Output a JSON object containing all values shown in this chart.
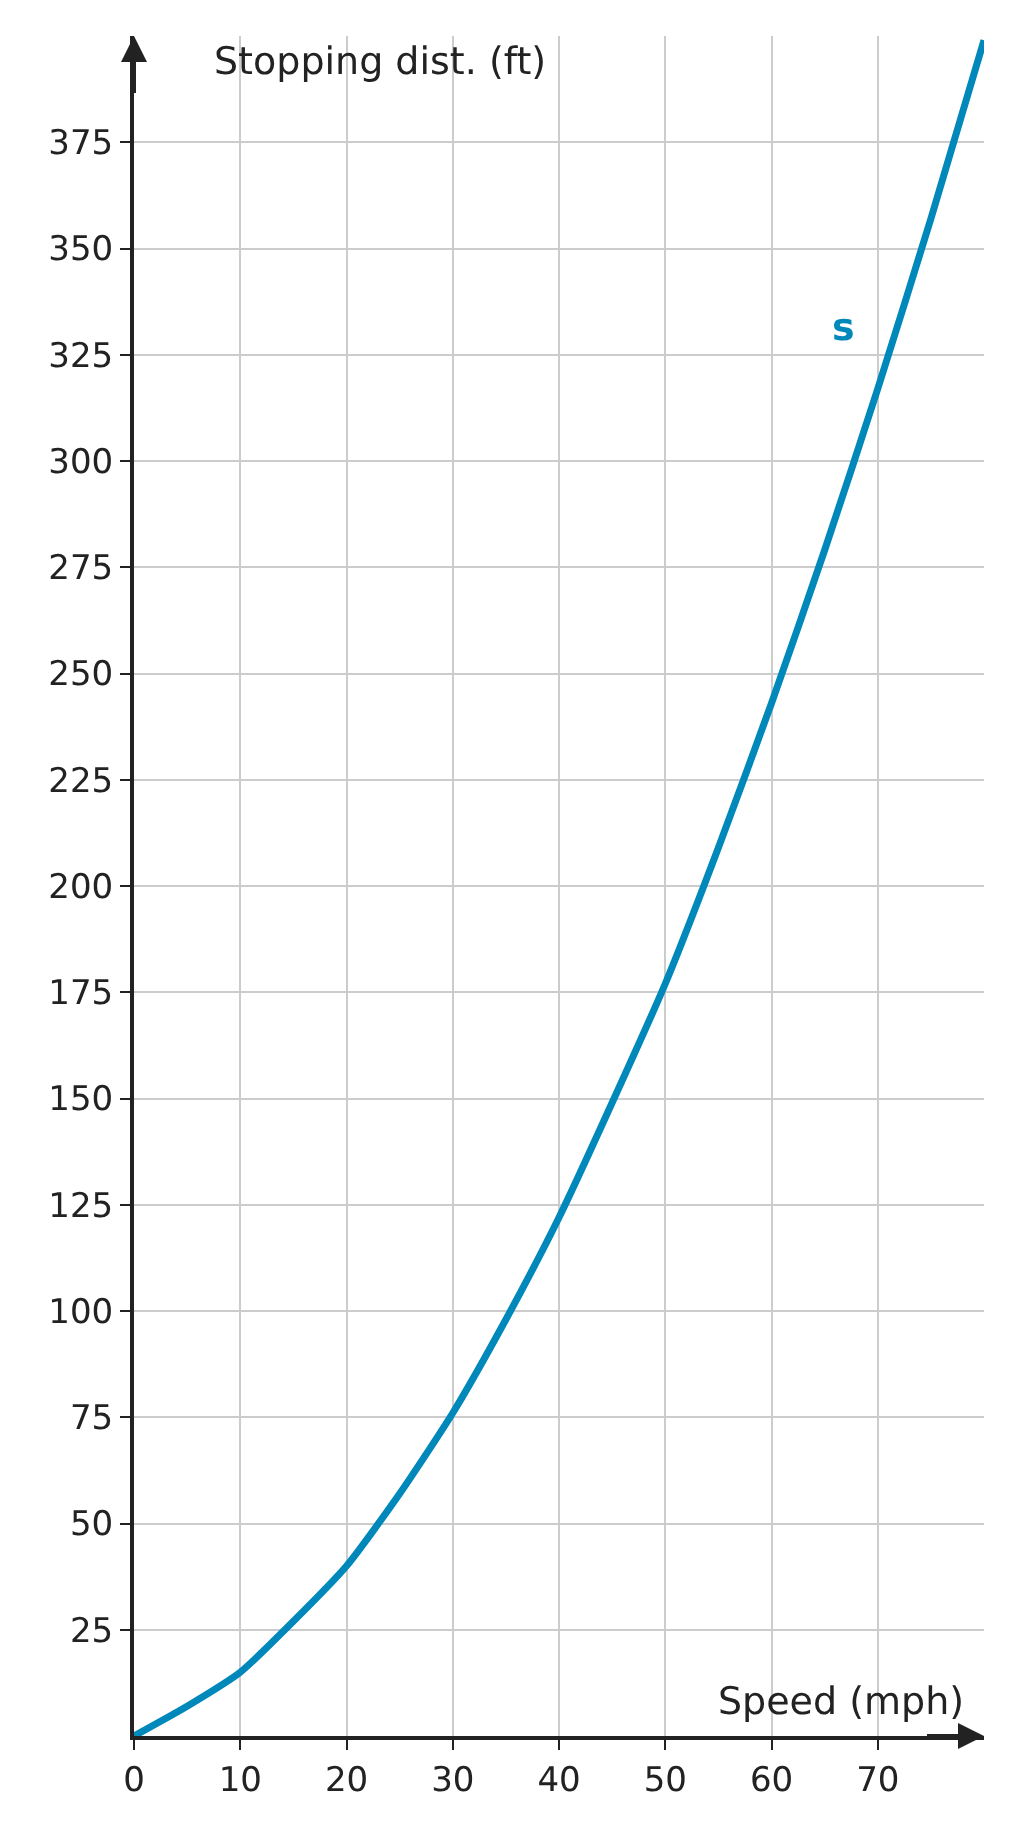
{
  "chart_data": {
    "type": "line",
    "xlabel": "Speed (mph)",
    "ylabel": "Stopping dist. (ft)",
    "x": [
      0,
      5,
      10,
      15,
      20,
      25,
      30,
      35,
      40,
      45,
      50,
      55,
      60,
      65,
      70,
      75,
      80
    ],
    "series": [
      {
        "name": "s",
        "color": "#0088bb",
        "values": [
          0,
          7,
          15,
          27,
          40,
          57,
          76,
          98,
          122,
          149,
          177,
          209,
          243,
          279,
          317,
          357,
          399
        ]
      }
    ],
    "xlim": [
      0,
      80
    ],
    "ylim": [
      0,
      400
    ],
    "xticks": [
      0,
      10,
      20,
      30,
      40,
      50,
      60,
      70
    ],
    "yticks": [
      25,
      50,
      75,
      100,
      125,
      150,
      175,
      200,
      225,
      250,
      275,
      300,
      325,
      350,
      375
    ],
    "grid": true,
    "legend": false,
    "marker": "none",
    "line_style": "solid"
  }
}
